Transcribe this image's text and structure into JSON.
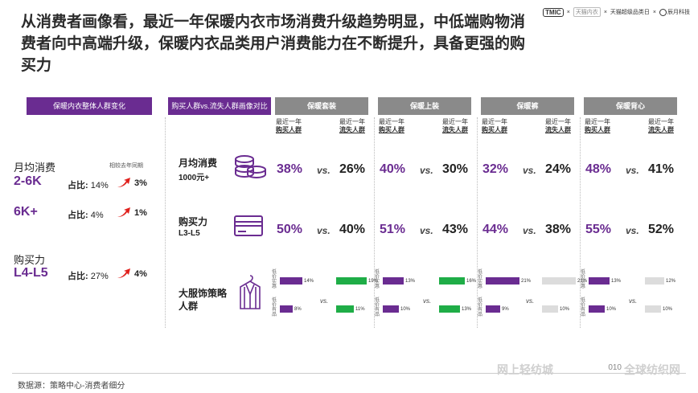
{
  "headline": "从消费者画像看，最近一年保暖内衣市场消费升级趋势明显，中低端购物消费者向中高端升级，保暖内衣品类用户消费能力在不断提升，具备更强的购买力",
  "brands": {
    "tmic": "TMIC",
    "tmall_underwear": "天猫内衣",
    "super_category_day": "天猫超级品类日",
    "chenyue": "辰月科技",
    "sep": "×"
  },
  "left_panel": {
    "header": "保暖内衣整体人群变化",
    "compare_note": "相较去年同期",
    "items": [
      {
        "label": "月均消费",
        "range": "2-6K",
        "ratio_label": "占比:",
        "ratio": "14%",
        "change": "3%"
      },
      {
        "label": "",
        "range": "6K+",
        "ratio_label": "占比:",
        "ratio": "4%",
        "change": "1%"
      },
      {
        "label": "购买力",
        "range": "L4-L5",
        "ratio_label": "占比:",
        "ratio": "27%",
        "change": "4%"
      }
    ]
  },
  "mid_panel": {
    "header": "购买人群vs.流失人群画像对比",
    "rows": [
      {
        "label": "月均消费",
        "sub": "1000元+",
        "icon": "coins-icon"
      },
      {
        "label": "购买力",
        "sub": "L3-L5",
        "icon": "card-icon"
      },
      {
        "label": "大服饰策略人群",
        "sub": "",
        "icon": "suit-icon"
      }
    ]
  },
  "columns_sub": {
    "buy_top": "最近一年",
    "buy_bottom": "购买人群",
    "lost_top": "最近一年",
    "lost_bottom": "流失人群"
  },
  "vs": "vs.",
  "bar_labels": {
    "low_price_real": "低价实惠",
    "low_price_taste": "低价有品"
  },
  "categories": [
    {
      "name": "保暖套装",
      "spend": [
        "38%",
        "26%"
      ],
      "power": [
        "50%",
        "40%"
      ],
      "bars": {
        "buy": [
          {
            "v": 14,
            "t": "14%"
          },
          {
            "v": 8,
            "t": "8%"
          }
        ],
        "lost": [
          {
            "v": 19,
            "t": "19%"
          },
          {
            "v": 11,
            "t": "11%"
          }
        ]
      }
    },
    {
      "name": "保暖上装",
      "spend": [
        "40%",
        "30%"
      ],
      "power": [
        "51%",
        "43%"
      ],
      "bars": {
        "buy": [
          {
            "v": 13,
            "t": "13%"
          },
          {
            "v": 10,
            "t": "10%"
          }
        ],
        "lost": [
          {
            "v": 16,
            "t": "16%"
          },
          {
            "v": 13,
            "t": "13%"
          }
        ]
      }
    },
    {
      "name": "保暖裤",
      "spend": [
        "32%",
        "24%"
      ],
      "power": [
        "44%",
        "38%"
      ],
      "bars": {
        "buy": [
          {
            "v": 21,
            "t": "21%"
          },
          {
            "v": 9,
            "t": "9%"
          }
        ],
        "lost": [
          {
            "v": 21,
            "t": "21%"
          },
          {
            "v": 10,
            "t": "10%"
          }
        ]
      }
    },
    {
      "name": "保暖背心",
      "spend": [
        "48%",
        "41%"
      ],
      "power": [
        "55%",
        "52%"
      ],
      "bars": {
        "buy": [
          {
            "v": 13,
            "t": "13%"
          },
          {
            "v": 10,
            "t": "10%"
          }
        ],
        "lost": [
          {
            "v": 12,
            "t": "12%"
          },
          {
            "v": 10,
            "t": "10%"
          }
        ]
      }
    }
  ],
  "colors": {
    "accent": "#6a2c91",
    "green": "#1fad47",
    "gray_header": "#8a8a8a",
    "arrow": "#e0201c"
  },
  "footer": "数据源：策略中心-消费者细分",
  "page_number": "010",
  "watermark_left": "网上轻纺城",
  "watermark_right": "全球纺织网"
}
